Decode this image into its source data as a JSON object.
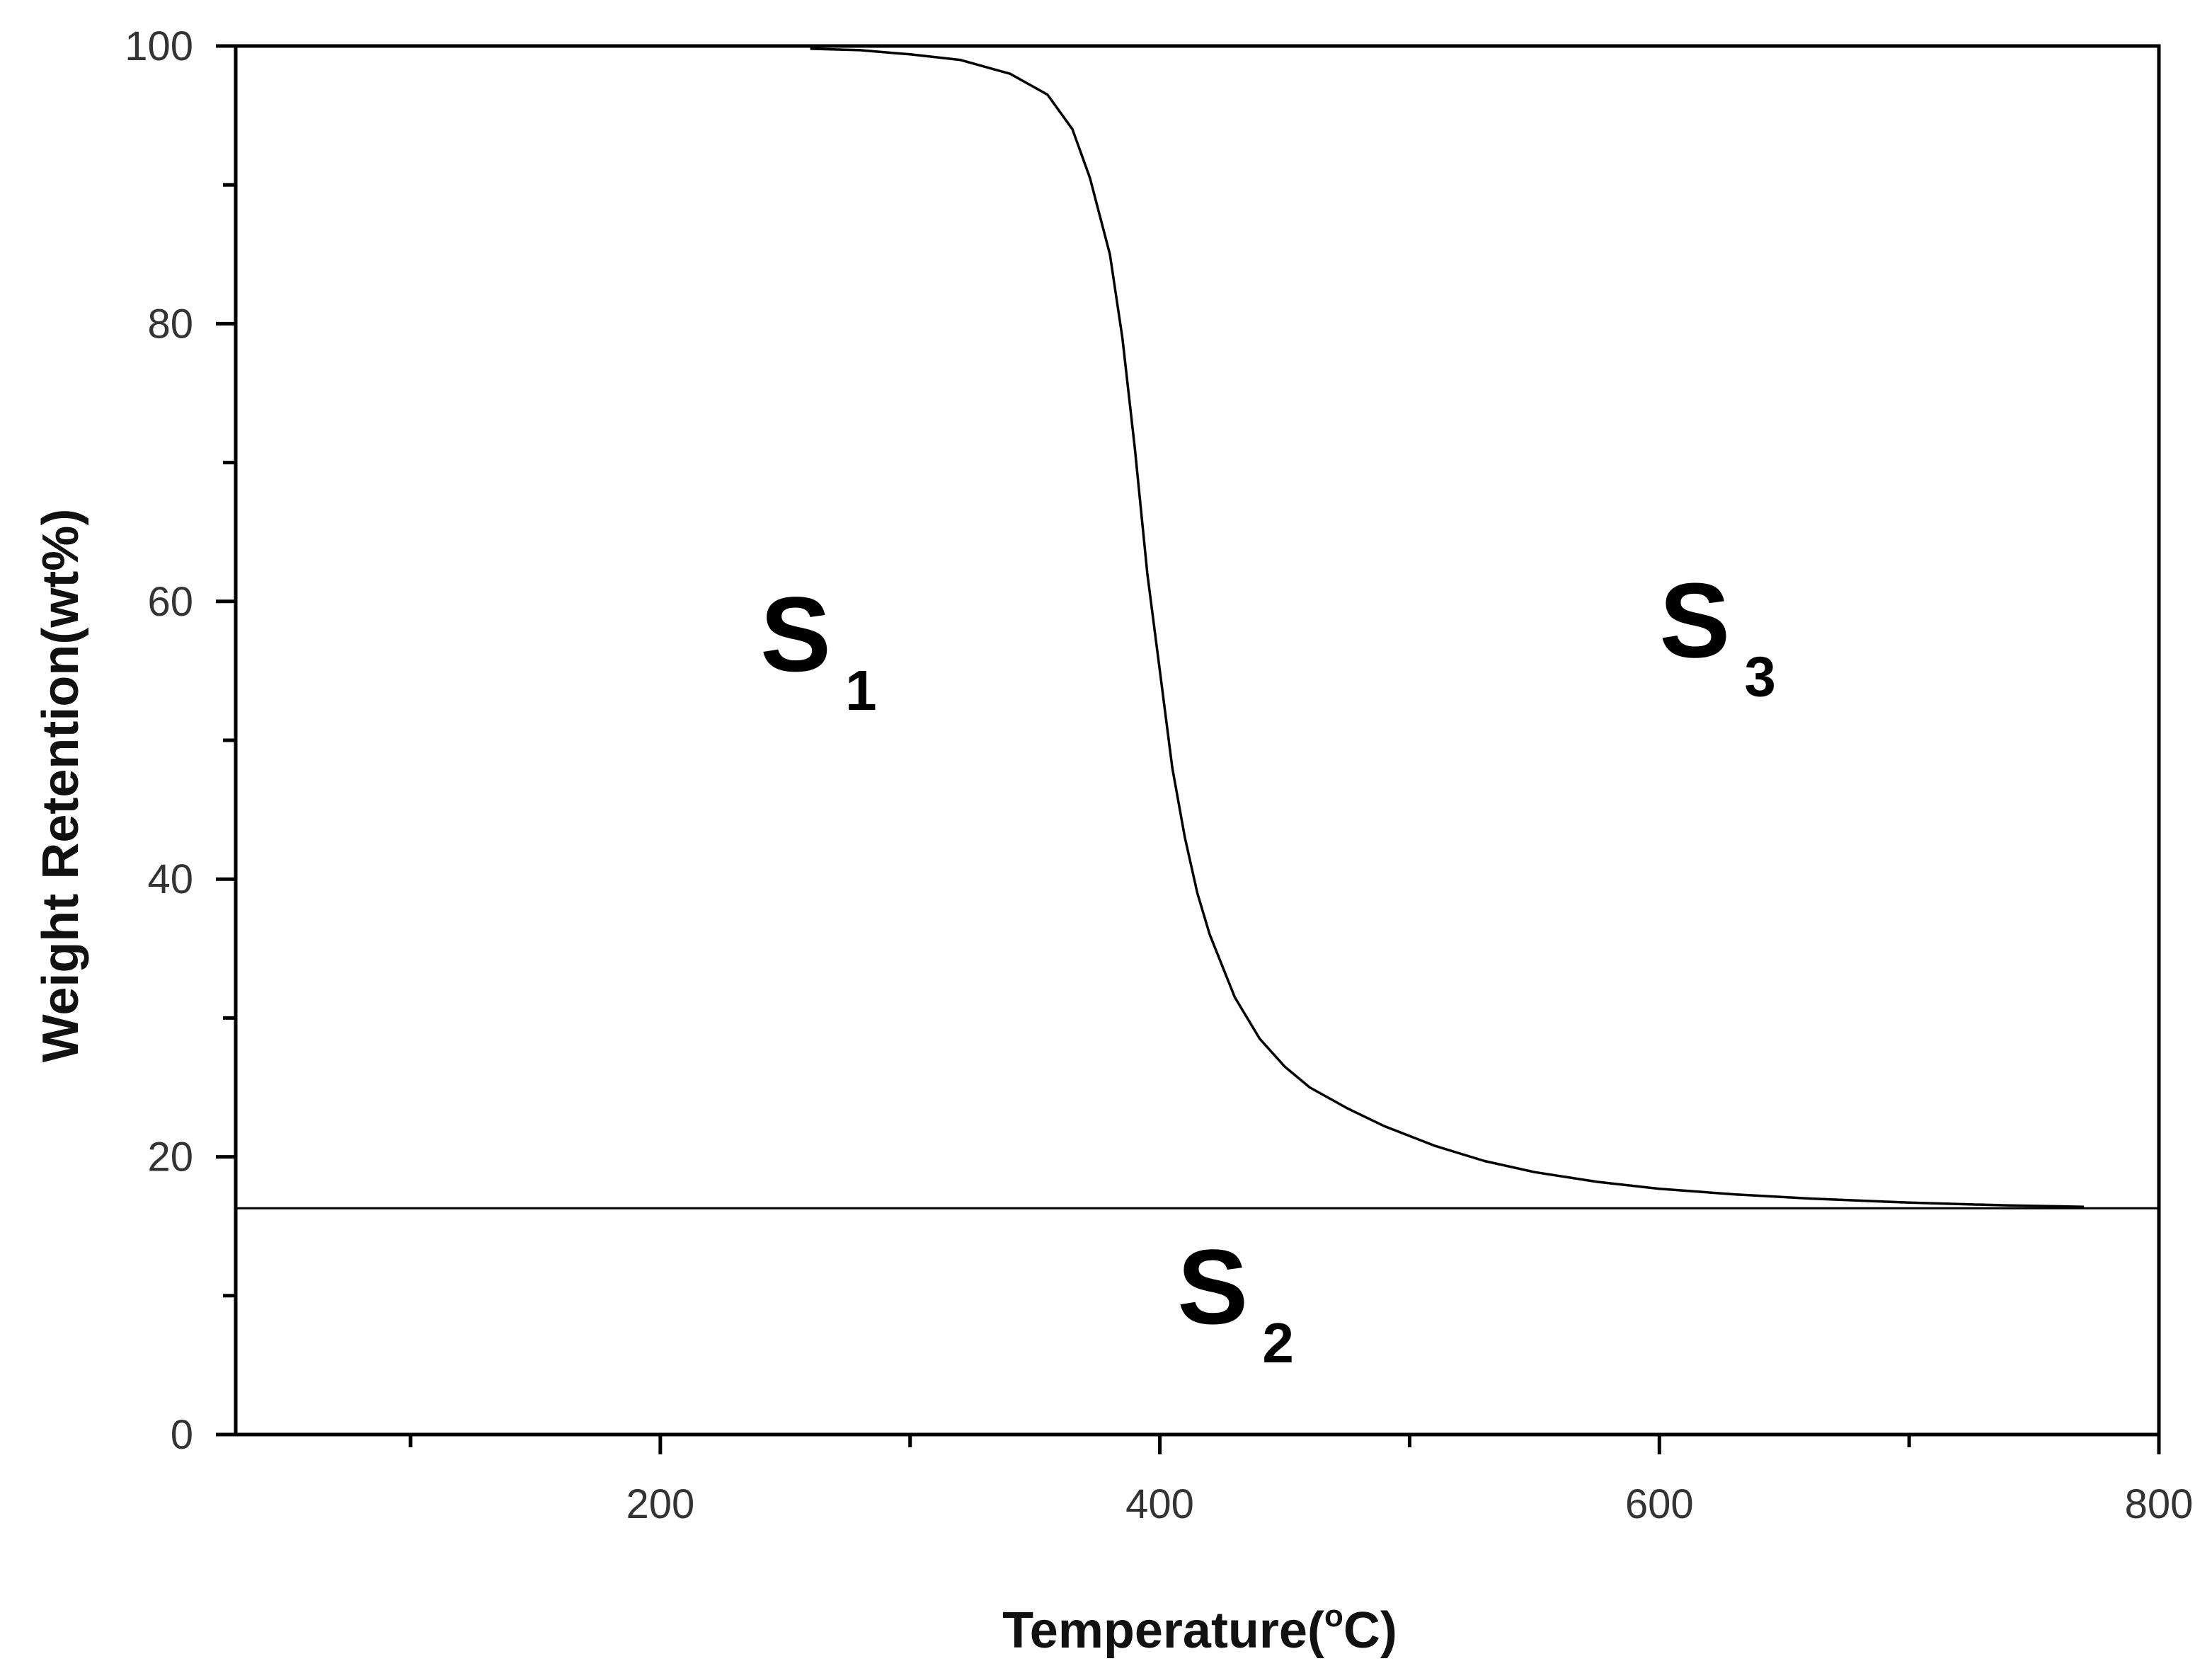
{
  "chart_data": {
    "type": "line",
    "title": "",
    "xlabel": "Temperature(°C)",
    "xlabel_parts": {
      "pre": "Temperature(",
      "degree": "o",
      "post": "C)"
    },
    "ylabel": "Weight Retention(wt%)",
    "xlim": [
      30,
      800
    ],
    "ylim": [
      0,
      100
    ],
    "x_ticks": [
      200,
      400,
      600,
      800
    ],
    "x_minor_ticks": [
      100,
      300,
      500,
      700
    ],
    "y_ticks": [
      0,
      20,
      40,
      60,
      80,
      100
    ],
    "y_minor_ticks": [
      10,
      30,
      50,
      70,
      90
    ],
    "grid": false,
    "series": [
      {
        "x": [
          260,
          280,
          300,
          320,
          340,
          355,
          365,
          372,
          380,
          385,
          390,
          395,
          400,
          405,
          410,
          415,
          420,
          430,
          440,
          450,
          460,
          475,
          490,
          510,
          530,
          550,
          575,
          600,
          630,
          660,
          700,
          740,
          770
        ],
        "y": [
          99.8,
          99.7,
          99.4,
          99.0,
          98.0,
          96.5,
          94.0,
          90.5,
          85.0,
          79.0,
          71.0,
          62.0,
          55.0,
          48.0,
          43.0,
          39.0,
          36.0,
          31.5,
          28.5,
          26.5,
          25.0,
          23.5,
          22.2,
          20.8,
          19.7,
          18.9,
          18.2,
          17.7,
          17.3,
          17.0,
          16.7,
          16.5,
          16.4
        ]
      }
    ],
    "reference_line": {
      "y": 16.3
    },
    "region_labels": [
      {
        "main": "S",
        "sub": "1",
        "x": 240,
        "y": 55
      },
      {
        "main": "S",
        "sub": "2",
        "x": 407,
        "y": 8
      },
      {
        "main": "S",
        "sub": "3",
        "x": 600,
        "y": 56
      }
    ]
  }
}
